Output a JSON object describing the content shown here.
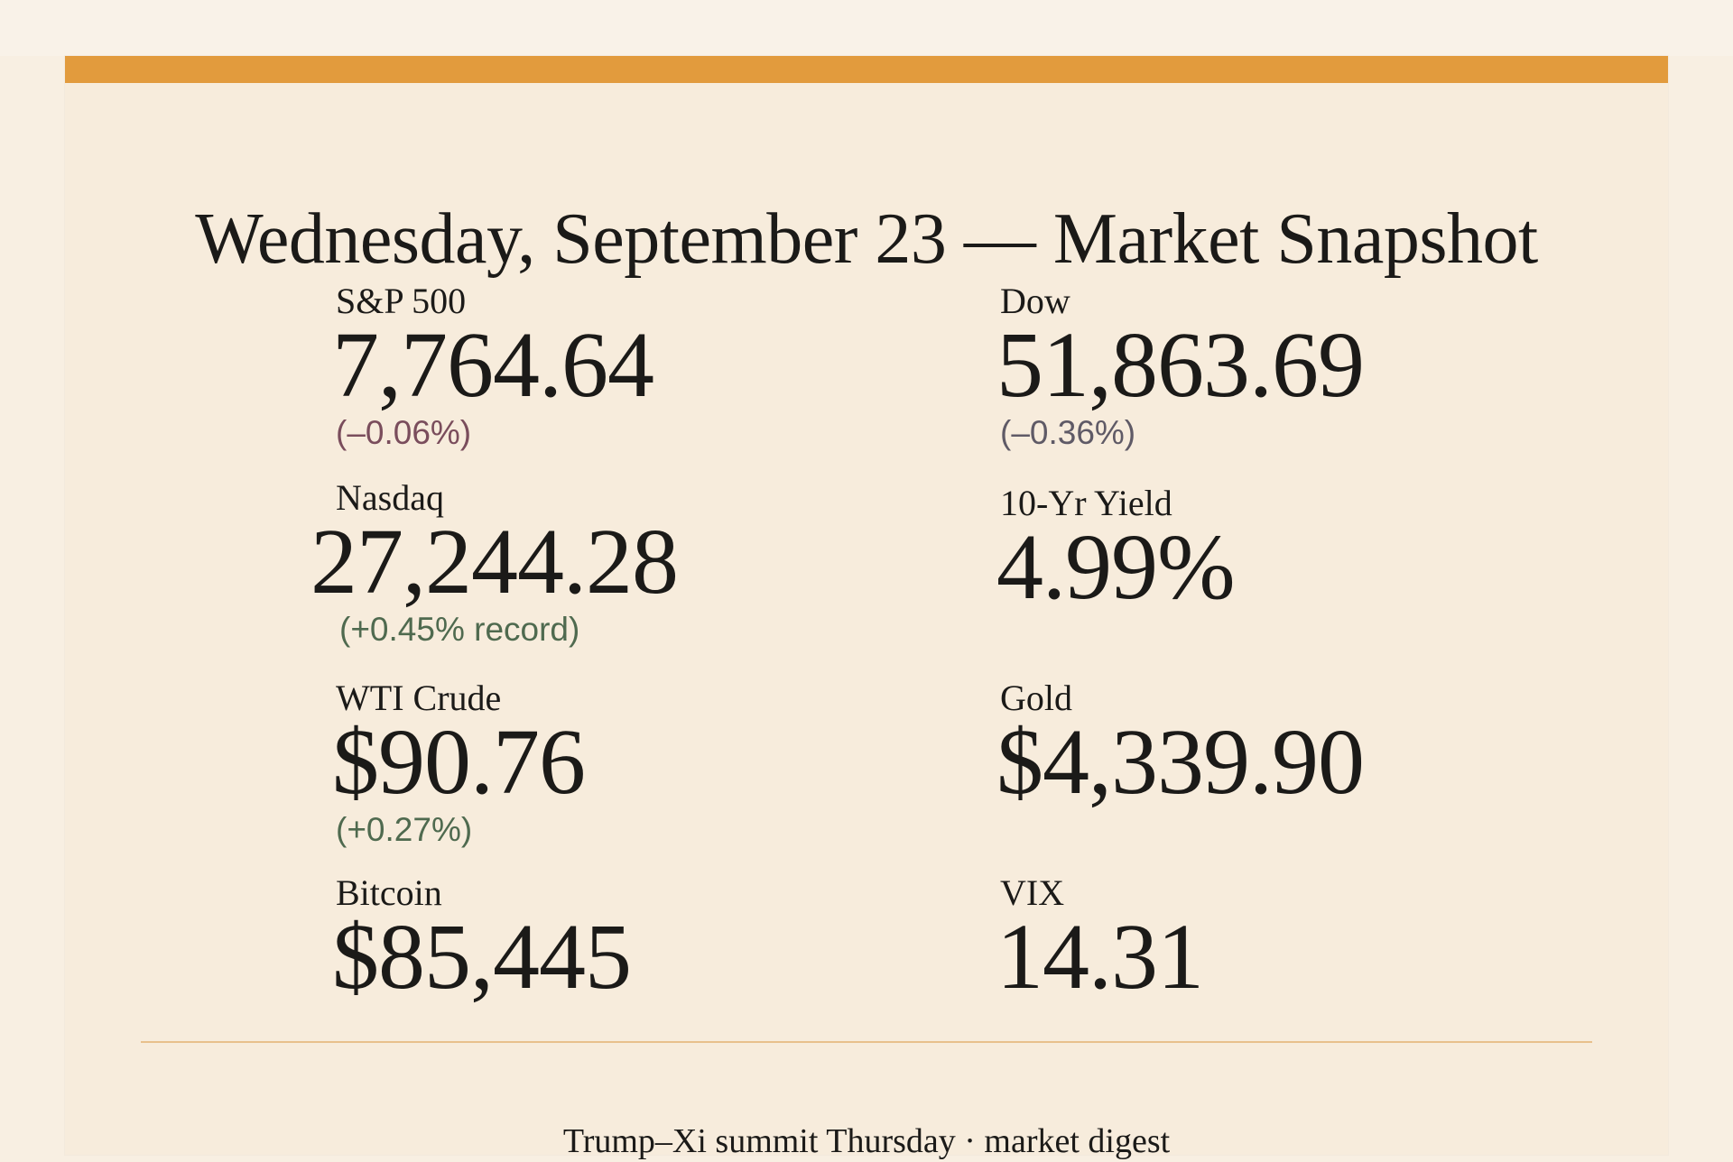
{
  "title": "Wednesday, September 23 — Market Snapshot",
  "metrics": [
    {
      "label": "S&P 500",
      "value": "7,764.64",
      "change": "(–0.06%)"
    },
    {
      "label": "Dow",
      "value": "51,863.69",
      "change": "(–0.36%)"
    },
    {
      "label": "Nasdaq",
      "value": "27,244.28",
      "change": "(+0.45% record)"
    },
    {
      "label": "10-Yr Yield",
      "value": "4.99%",
      "change": ""
    },
    {
      "label": "WTI Crude",
      "value": "$90.76",
      "change": "(+0.27%)"
    },
    {
      "label": "Gold",
      "value": "$4,339.90",
      "change": ""
    },
    {
      "label": "Bitcoin",
      "value": "$85,445",
      "change": ""
    },
    {
      "label": "VIX",
      "value": "14.31",
      "change": ""
    }
  ],
  "footer": "Trump–Xi summit Thursday · market digest",
  "colors": {
    "accent": "#e29b3d",
    "background": "#f7ecdc",
    "negative_change": "#7a4d5c",
    "positive_change": "#4f6a4f"
  }
}
